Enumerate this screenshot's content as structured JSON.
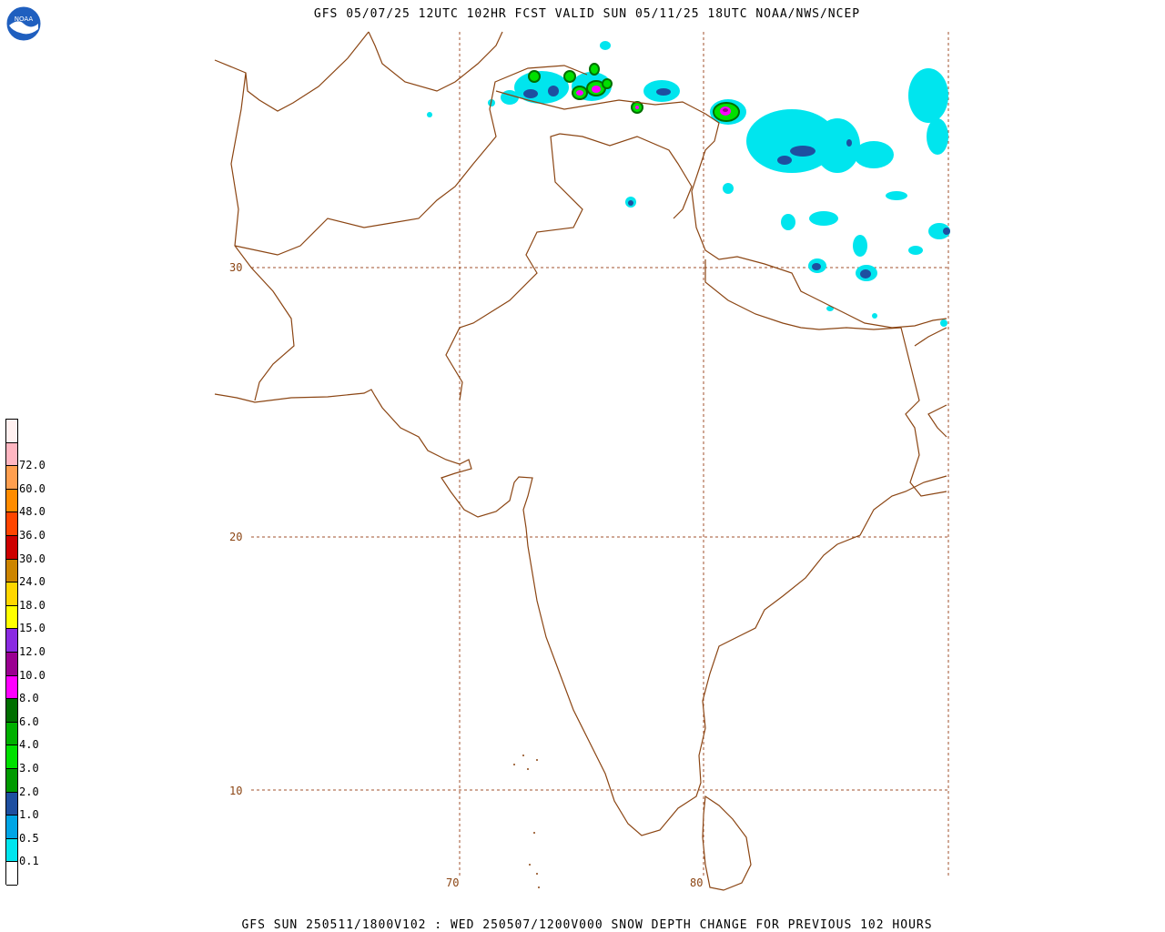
{
  "header": {
    "title": "GFS 05/07/25 12UTC 102HR FCST VALID SUN 05/11/25 18UTC NOAA/NWS/NCEP"
  },
  "footer": {
    "caption": "GFS SUN 250511/1800V102 : WED 250507/1200V000 SNOW DEPTH CHANGE FOR PREVIOUS 102 HOURS"
  },
  "logo": {
    "text": "NOAA"
  },
  "map": {
    "lat_labels": [
      "30",
      "20",
      "10"
    ],
    "lon_labels": [
      "70",
      "80"
    ],
    "colors": {
      "border": "#8b4513",
      "grid": "#a0522d"
    }
  },
  "legend": {
    "colors": [
      "#ffffff",
      "#00e5ee",
      "#00a5e5",
      "#1e4fa0",
      "#009a00",
      "#00e000",
      "#00b000",
      "#006e00",
      "#ff00ff",
      "#9a0091",
      "#8a2be2",
      "#ffff00",
      "#ffd700",
      "#cd8500",
      "#cd0000",
      "#ff4500",
      "#ff8c00",
      "#ff9f4f",
      "#ffb6c1",
      "#fff0f0"
    ],
    "labels": [
      "0.1",
      "0.5",
      "1.0",
      "2.0",
      "3.0",
      "4.0",
      "6.0",
      "8.0",
      "10.0",
      "12.0",
      "15.0",
      "18.0",
      "24.0",
      "30.0",
      "36.0",
      "48.0",
      "60.0",
      "72.0"
    ]
  }
}
